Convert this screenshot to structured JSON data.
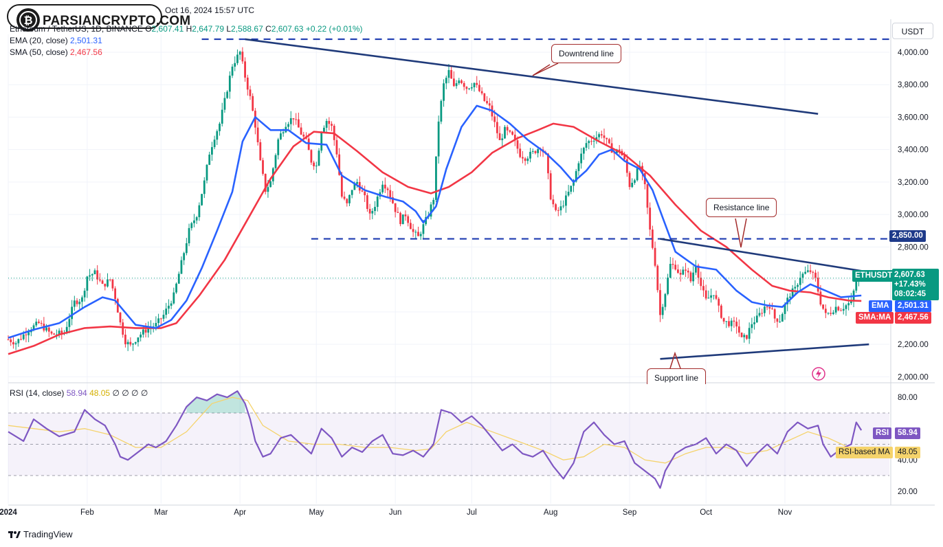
{
  "header": {
    "date_line": "Oct 16, 2024 15:57 UTC",
    "symbol_line": "Ethereum / TetherUS, 1D, BINANCE",
    "ohlc": {
      "o_label": "O",
      "o": "2,607.41",
      "h_label": "H",
      "h": "2,647.79",
      "l_label": "L",
      "l": "2,588.67",
      "c_label": "C",
      "c": "2,607.63",
      "chg": "+0.22 (+0.01%)"
    },
    "ema_label": "EMA (20, close)",
    "ema_value": "2,501.31",
    "sma_label": "SMA (50, close)",
    "sma_value": "2,467.56",
    "rsi_label": "RSI (14, close)",
    "rsi_value": "58.94",
    "rsi_ma_value": "48.05",
    "rsi_extra": "∅ ∅ ∅ ∅"
  },
  "logo": {
    "text": "PARSIANCRYPTO.COM"
  },
  "unit_button": "USDT",
  "brand": "TradingView",
  "tags": {
    "level_2850": "2,850.00",
    "symbol": "ETHUSDT",
    "price": "2,607.63",
    "change": "+17.43%",
    "countdown": "08:02:45",
    "ema_name": "EMA",
    "ema_value": "2,501.31",
    "sma_name": "SMA:MA",
    "sma_value": "2,467.56",
    "rsi_name": "RSI",
    "rsi_value": "58.94",
    "rsima_name": "RSI-based MA",
    "rsima_value": "48.05"
  },
  "callouts": {
    "downtrend": "Downtrend line",
    "resistance": "Resistance line",
    "support": "Support line"
  },
  "colors": {
    "up": "#089981",
    "down": "#f23645",
    "ema": "#2962ff",
    "sma": "#f23645",
    "rsi": "#7e57c2",
    "rsi_ma": "#f5d36b",
    "trendline": "#1f3a7a",
    "callout_border": "#a32a2a"
  },
  "chart_data": {
    "type": "candlestick",
    "price_axis": {
      "ticks": [
        2000,
        2200,
        2400,
        2600,
        2800,
        3000,
        3200,
        3400,
        3600,
        3800,
        4000
      ],
      "labels": [
        "2,000.00",
        "2,200.00",
        "2,400.00",
        "2,600.00",
        "2,800.00",
        "3,000.00",
        "3,200.00",
        "3,400.00",
        "3,600.00",
        "3,800.00",
        "4,000.00"
      ],
      "range": [
        1980,
        4110
      ]
    },
    "rsi_axis": {
      "ticks": [
        20,
        40,
        80
      ],
      "labels": [
        "20.00",
        "40.00",
        "80.00"
      ],
      "range": [
        12,
        88
      ],
      "bands": [
        30,
        70
      ],
      "midline": 50
    },
    "time_axis": {
      "labels": [
        "2024",
        "Feb",
        "Mar",
        "Apr",
        "May",
        "Jun",
        "Jul",
        "Aug",
        "Sep",
        "Oct",
        "Nov"
      ],
      "day_index": [
        0,
        31,
        60,
        91,
        121,
        152,
        182,
        213,
        244,
        274,
        305
      ]
    },
    "price_anchors": [
      [
        0,
        2230
      ],
      [
        3,
        2210
      ],
      [
        8,
        2290
      ],
      [
        12,
        2330
      ],
      [
        17,
        2260
      ],
      [
        22,
        2270
      ],
      [
        26,
        2460
      ],
      [
        29,
        2480
      ],
      [
        31,
        2620
      ],
      [
        34,
        2640
      ],
      [
        37,
        2560
      ],
      [
        40,
        2600
      ],
      [
        42,
        2490
      ],
      [
        44,
        2330
      ],
      [
        46,
        2220
      ],
      [
        48,
        2190
      ],
      [
        51,
        2250
      ],
      [
        55,
        2300
      ],
      [
        58,
        2320
      ],
      [
        61,
        2380
      ],
      [
        65,
        2500
      ],
      [
        68,
        2700
      ],
      [
        71,
        2900
      ],
      [
        74,
        3000
      ],
      [
        77,
        3200
      ],
      [
        79,
        3380
      ],
      [
        81,
        3480
      ],
      [
        83,
        3560
      ],
      [
        85,
        3700
      ],
      [
        88,
        3920
      ],
      [
        91,
        4000
      ],
      [
        93,
        3850
      ],
      [
        95,
        3720
      ],
      [
        97,
        3550
      ],
      [
        99,
        3320
      ],
      [
        101,
        3150
      ],
      [
        103,
        3200
      ],
      [
        106,
        3460
      ],
      [
        109,
        3560
      ],
      [
        112,
        3600
      ],
      [
        115,
        3500
      ],
      [
        117,
        3450
      ],
      [
        119,
        3330
      ],
      [
        121,
        3300
      ],
      [
        123,
        3520
      ],
      [
        125,
        3580
      ],
      [
        127,
        3540
      ],
      [
        129,
        3380
      ],
      [
        131,
        3110
      ],
      [
        133,
        3060
      ],
      [
        135,
        3160
      ],
      [
        137,
        3200
      ],
      [
        140,
        3100
      ],
      [
        142,
        2990
      ],
      [
        144,
        3060
      ],
      [
        147,
        3200
      ],
      [
        149,
        3160
      ],
      [
        152,
        3030
      ],
      [
        154,
        2960
      ],
      [
        156,
        3000
      ],
      [
        159,
        2890
      ],
      [
        161,
        2860
      ],
      [
        163,
        2930
      ],
      [
        165,
        3000
      ],
      [
        167,
        3100
      ],
      [
        169,
        3580
      ],
      [
        171,
        3800
      ],
      [
        173,
        3880
      ],
      [
        175,
        3780
      ],
      [
        177,
        3840
      ],
      [
        180,
        3780
      ],
      [
        183,
        3810
      ],
      [
        185,
        3760
      ],
      [
        187,
        3700
      ],
      [
        189,
        3660
      ],
      [
        191,
        3560
      ],
      [
        193,
        3450
      ],
      [
        195,
        3520
      ],
      [
        198,
        3480
      ],
      [
        201,
        3370
      ],
      [
        203,
        3350
      ],
      [
        206,
        3380
      ],
      [
        209,
        3420
      ],
      [
        211,
        3360
      ],
      [
        213,
        3110
      ],
      [
        215,
        3010
      ],
      [
        217,
        3040
      ],
      [
        219,
        3100
      ],
      [
        222,
        3200
      ],
      [
        224,
        3330
      ],
      [
        227,
        3440
      ],
      [
        230,
        3470
      ],
      [
        233,
        3500
      ],
      [
        236,
        3420
      ],
      [
        238,
        3380
      ],
      [
        240,
        3400
      ],
      [
        242,
        3330
      ],
      [
        244,
        3180
      ],
      [
        246,
        3230
      ],
      [
        248,
        3300
      ],
      [
        250,
        3170
      ],
      [
        252,
        2900
      ],
      [
        254,
        2700
      ],
      [
        256,
        2380
      ],
      [
        258,
        2520
      ],
      [
        260,
        2690
      ],
      [
        262,
        2680
      ],
      [
        264,
        2620
      ],
      [
        266,
        2670
      ],
      [
        268,
        2590
      ],
      [
        270,
        2700
      ],
      [
        272,
        2560
      ],
      [
        274,
        2470
      ],
      [
        277,
        2520
      ],
      [
        279,
        2420
      ],
      [
        281,
        2340
      ],
      [
        283,
        2330
      ],
      [
        286,
        2320
      ],
      [
        288,
        2230
      ],
      [
        290,
        2250
      ],
      [
        292,
        2330
      ],
      [
        294,
        2360
      ],
      [
        297,
        2430
      ],
      [
        299,
        2440
      ],
      [
        301,
        2360
      ],
      [
        303,
        2350
      ],
      [
        305,
        2440
      ],
      [
        307,
        2510
      ],
      [
        309,
        2540
      ],
      [
        311,
        2620
      ],
      [
        313,
        2640
      ],
      [
        315,
        2650
      ],
      [
        317,
        2600
      ],
      [
        319,
        2460
      ],
      [
        321,
        2380
      ],
      [
        323,
        2400
      ],
      [
        325,
        2430
      ],
      [
        327,
        2420
      ],
      [
        329,
        2440
      ],
      [
        331,
        2460
      ],
      [
        333,
        2590
      ],
      [
        335,
        2610
      ]
    ],
    "ema20": [
      [
        0,
        2240
      ],
      [
        10,
        2290
      ],
      [
        20,
        2330
      ],
      [
        30,
        2430
      ],
      [
        37,
        2490
      ],
      [
        42,
        2470
      ],
      [
        50,
        2320
      ],
      [
        58,
        2300
      ],
      [
        64,
        2350
      ],
      [
        70,
        2470
      ],
      [
        76,
        2670
      ],
      [
        82,
        2900
      ],
      [
        88,
        3140
      ],
      [
        92,
        3450
      ],
      [
        97,
        3600
      ],
      [
        103,
        3520
      ],
      [
        110,
        3520
      ],
      [
        117,
        3440
      ],
      [
        125,
        3430
      ],
      [
        131,
        3240
      ],
      [
        140,
        3150
      ],
      [
        148,
        3110
      ],
      [
        155,
        3080
      ],
      [
        160,
        3020
      ],
      [
        163,
        2950
      ],
      [
        168,
        3050
      ],
      [
        172,
        3280
      ],
      [
        178,
        3540
      ],
      [
        184,
        3670
      ],
      [
        190,
        3640
      ],
      [
        197,
        3560
      ],
      [
        204,
        3460
      ],
      [
        211,
        3380
      ],
      [
        217,
        3290
      ],
      [
        222,
        3200
      ],
      [
        227,
        3270
      ],
      [
        232,
        3370
      ],
      [
        237,
        3400
      ],
      [
        242,
        3330
      ],
      [
        248,
        3280
      ],
      [
        253,
        3150
      ],
      [
        257,
        2980
      ],
      [
        262,
        2770
      ],
      [
        270,
        2680
      ],
      [
        278,
        2660
      ],
      [
        286,
        2530
      ],
      [
        292,
        2460
      ],
      [
        298,
        2440
      ],
      [
        304,
        2430
      ],
      [
        310,
        2520
      ],
      [
        315,
        2570
      ],
      [
        321,
        2530
      ],
      [
        327,
        2490
      ],
      [
        335,
        2501
      ]
    ],
    "sma50": [
      [
        0,
        2140
      ],
      [
        10,
        2190
      ],
      [
        20,
        2260
      ],
      [
        30,
        2300
      ],
      [
        40,
        2310
      ],
      [
        50,
        2300
      ],
      [
        60,
        2300
      ],
      [
        66,
        2330
      ],
      [
        75,
        2500
      ],
      [
        85,
        2720
      ],
      [
        94,
        2970
      ],
      [
        103,
        3220
      ],
      [
        112,
        3420
      ],
      [
        120,
        3510
      ],
      [
        128,
        3500
      ],
      [
        137,
        3390
      ],
      [
        147,
        3260
      ],
      [
        157,
        3170
      ],
      [
        166,
        3130
      ],
      [
        173,
        3170
      ],
      [
        182,
        3260
      ],
      [
        190,
        3380
      ],
      [
        200,
        3470
      ],
      [
        208,
        3520
      ],
      [
        214,
        3560
      ],
      [
        222,
        3540
      ],
      [
        232,
        3450
      ],
      [
        242,
        3370
      ],
      [
        252,
        3240
      ],
      [
        262,
        3060
      ],
      [
        272,
        2900
      ],
      [
        282,
        2800
      ],
      [
        292,
        2660
      ],
      [
        300,
        2560
      ],
      [
        307,
        2530
      ],
      [
        315,
        2520
      ],
      [
        322,
        2490
      ],
      [
        330,
        2470
      ],
      [
        335,
        2467.56
      ]
    ],
    "rsi": [
      [
        0,
        58
      ],
      [
        6,
        52
      ],
      [
        10,
        66
      ],
      [
        15,
        60
      ],
      [
        20,
        55
      ],
      [
        26,
        58
      ],
      [
        30,
        72
      ],
      [
        34,
        66
      ],
      [
        38,
        62
      ],
      [
        42,
        50
      ],
      [
        44,
        42
      ],
      [
        47,
        40
      ],
      [
        51,
        45
      ],
      [
        55,
        50
      ],
      [
        58,
        48
      ],
      [
        62,
        52
      ],
      [
        66,
        62
      ],
      [
        70,
        74
      ],
      [
        74,
        80
      ],
      [
        78,
        78
      ],
      [
        82,
        82
      ],
      [
        86,
        80
      ],
      [
        90,
        84
      ],
      [
        93,
        76
      ],
      [
        95,
        66
      ],
      [
        97,
        52
      ],
      [
        100,
        42
      ],
      [
        103,
        44
      ],
      [
        107,
        54
      ],
      [
        111,
        56
      ],
      [
        115,
        50
      ],
      [
        119,
        44
      ],
      [
        123,
        60
      ],
      [
        127,
        54
      ],
      [
        131,
        42
      ],
      [
        135,
        48
      ],
      [
        139,
        45
      ],
      [
        143,
        52
      ],
      [
        147,
        56
      ],
      [
        151,
        44
      ],
      [
        155,
        43
      ],
      [
        159,
        46
      ],
      [
        163,
        42
      ],
      [
        167,
        50
      ],
      [
        170,
        72
      ],
      [
        174,
        70
      ],
      [
        178,
        64
      ],
      [
        182,
        68
      ],
      [
        186,
        62
      ],
      [
        190,
        54
      ],
      [
        194,
        46
      ],
      [
        198,
        50
      ],
      [
        202,
        44
      ],
      [
        206,
        42
      ],
      [
        210,
        46
      ],
      [
        214,
        36
      ],
      [
        218,
        28
      ],
      [
        222,
        38
      ],
      [
        226,
        58
      ],
      [
        230,
        64
      ],
      [
        234,
        56
      ],
      [
        238,
        50
      ],
      [
        242,
        52
      ],
      [
        246,
        38
      ],
      [
        250,
        33
      ],
      [
        254,
        28
      ],
      [
        256,
        22
      ],
      [
        258,
        33
      ],
      [
        262,
        44
      ],
      [
        266,
        48
      ],
      [
        270,
        50
      ],
      [
        274,
        54
      ],
      [
        278,
        44
      ],
      [
        282,
        50
      ],
      [
        286,
        46
      ],
      [
        290,
        36
      ],
      [
        294,
        44
      ],
      [
        298,
        50
      ],
      [
        302,
        44
      ],
      [
        306,
        58
      ],
      [
        310,
        64
      ],
      [
        314,
        60
      ],
      [
        318,
        62
      ],
      [
        320,
        50
      ],
      [
        323,
        42
      ],
      [
        327,
        47
      ],
      [
        331,
        50
      ],
      [
        333,
        64
      ],
      [
        335,
        58.94
      ]
    ],
    "rsi_ma": [
      [
        0,
        62
      ],
      [
        10,
        60
      ],
      [
        20,
        58
      ],
      [
        30,
        60
      ],
      [
        40,
        56
      ],
      [
        50,
        48
      ],
      [
        60,
        48
      ],
      [
        70,
        58
      ],
      [
        80,
        76
      ],
      [
        88,
        80
      ],
      [
        94,
        78
      ],
      [
        100,
        62
      ],
      [
        110,
        52
      ],
      [
        120,
        50
      ],
      [
        130,
        50
      ],
      [
        140,
        48
      ],
      [
        150,
        48
      ],
      [
        160,
        46
      ],
      [
        166,
        47
      ],
      [
        172,
        58
      ],
      [
        180,
        64
      ],
      [
        190,
        58
      ],
      [
        200,
        52
      ],
      [
        210,
        46
      ],
      [
        218,
        40
      ],
      [
        226,
        42
      ],
      [
        234,
        50
      ],
      [
        242,
        48
      ],
      [
        250,
        40
      ],
      [
        258,
        38
      ],
      [
        266,
        44
      ],
      [
        274,
        48
      ],
      [
        282,
        48
      ],
      [
        290,
        44
      ],
      [
        298,
        46
      ],
      [
        306,
        52
      ],
      [
        314,
        58
      ],
      [
        322,
        54
      ],
      [
        330,
        48
      ],
      [
        335,
        48.05
      ]
    ],
    "trendlines": [
      {
        "name": "downtrend",
        "from": [
          93,
          4080
        ],
        "to": [
          318,
          3620
        ]
      },
      {
        "name": "resistance",
        "from": [
          256,
          2850
        ],
        "to": [
          340,
          2640
        ]
      },
      {
        "name": "support",
        "from": [
          256,
          2110
        ],
        "to": [
          338,
          2200
        ]
      }
    ],
    "levels": [
      {
        "value": 4080,
        "from_day": 76,
        "to_day": 350
      },
      {
        "value": 2850,
        "from_day": 119,
        "to_day": 350
      }
    ],
    "current_price": 2607.63
  }
}
